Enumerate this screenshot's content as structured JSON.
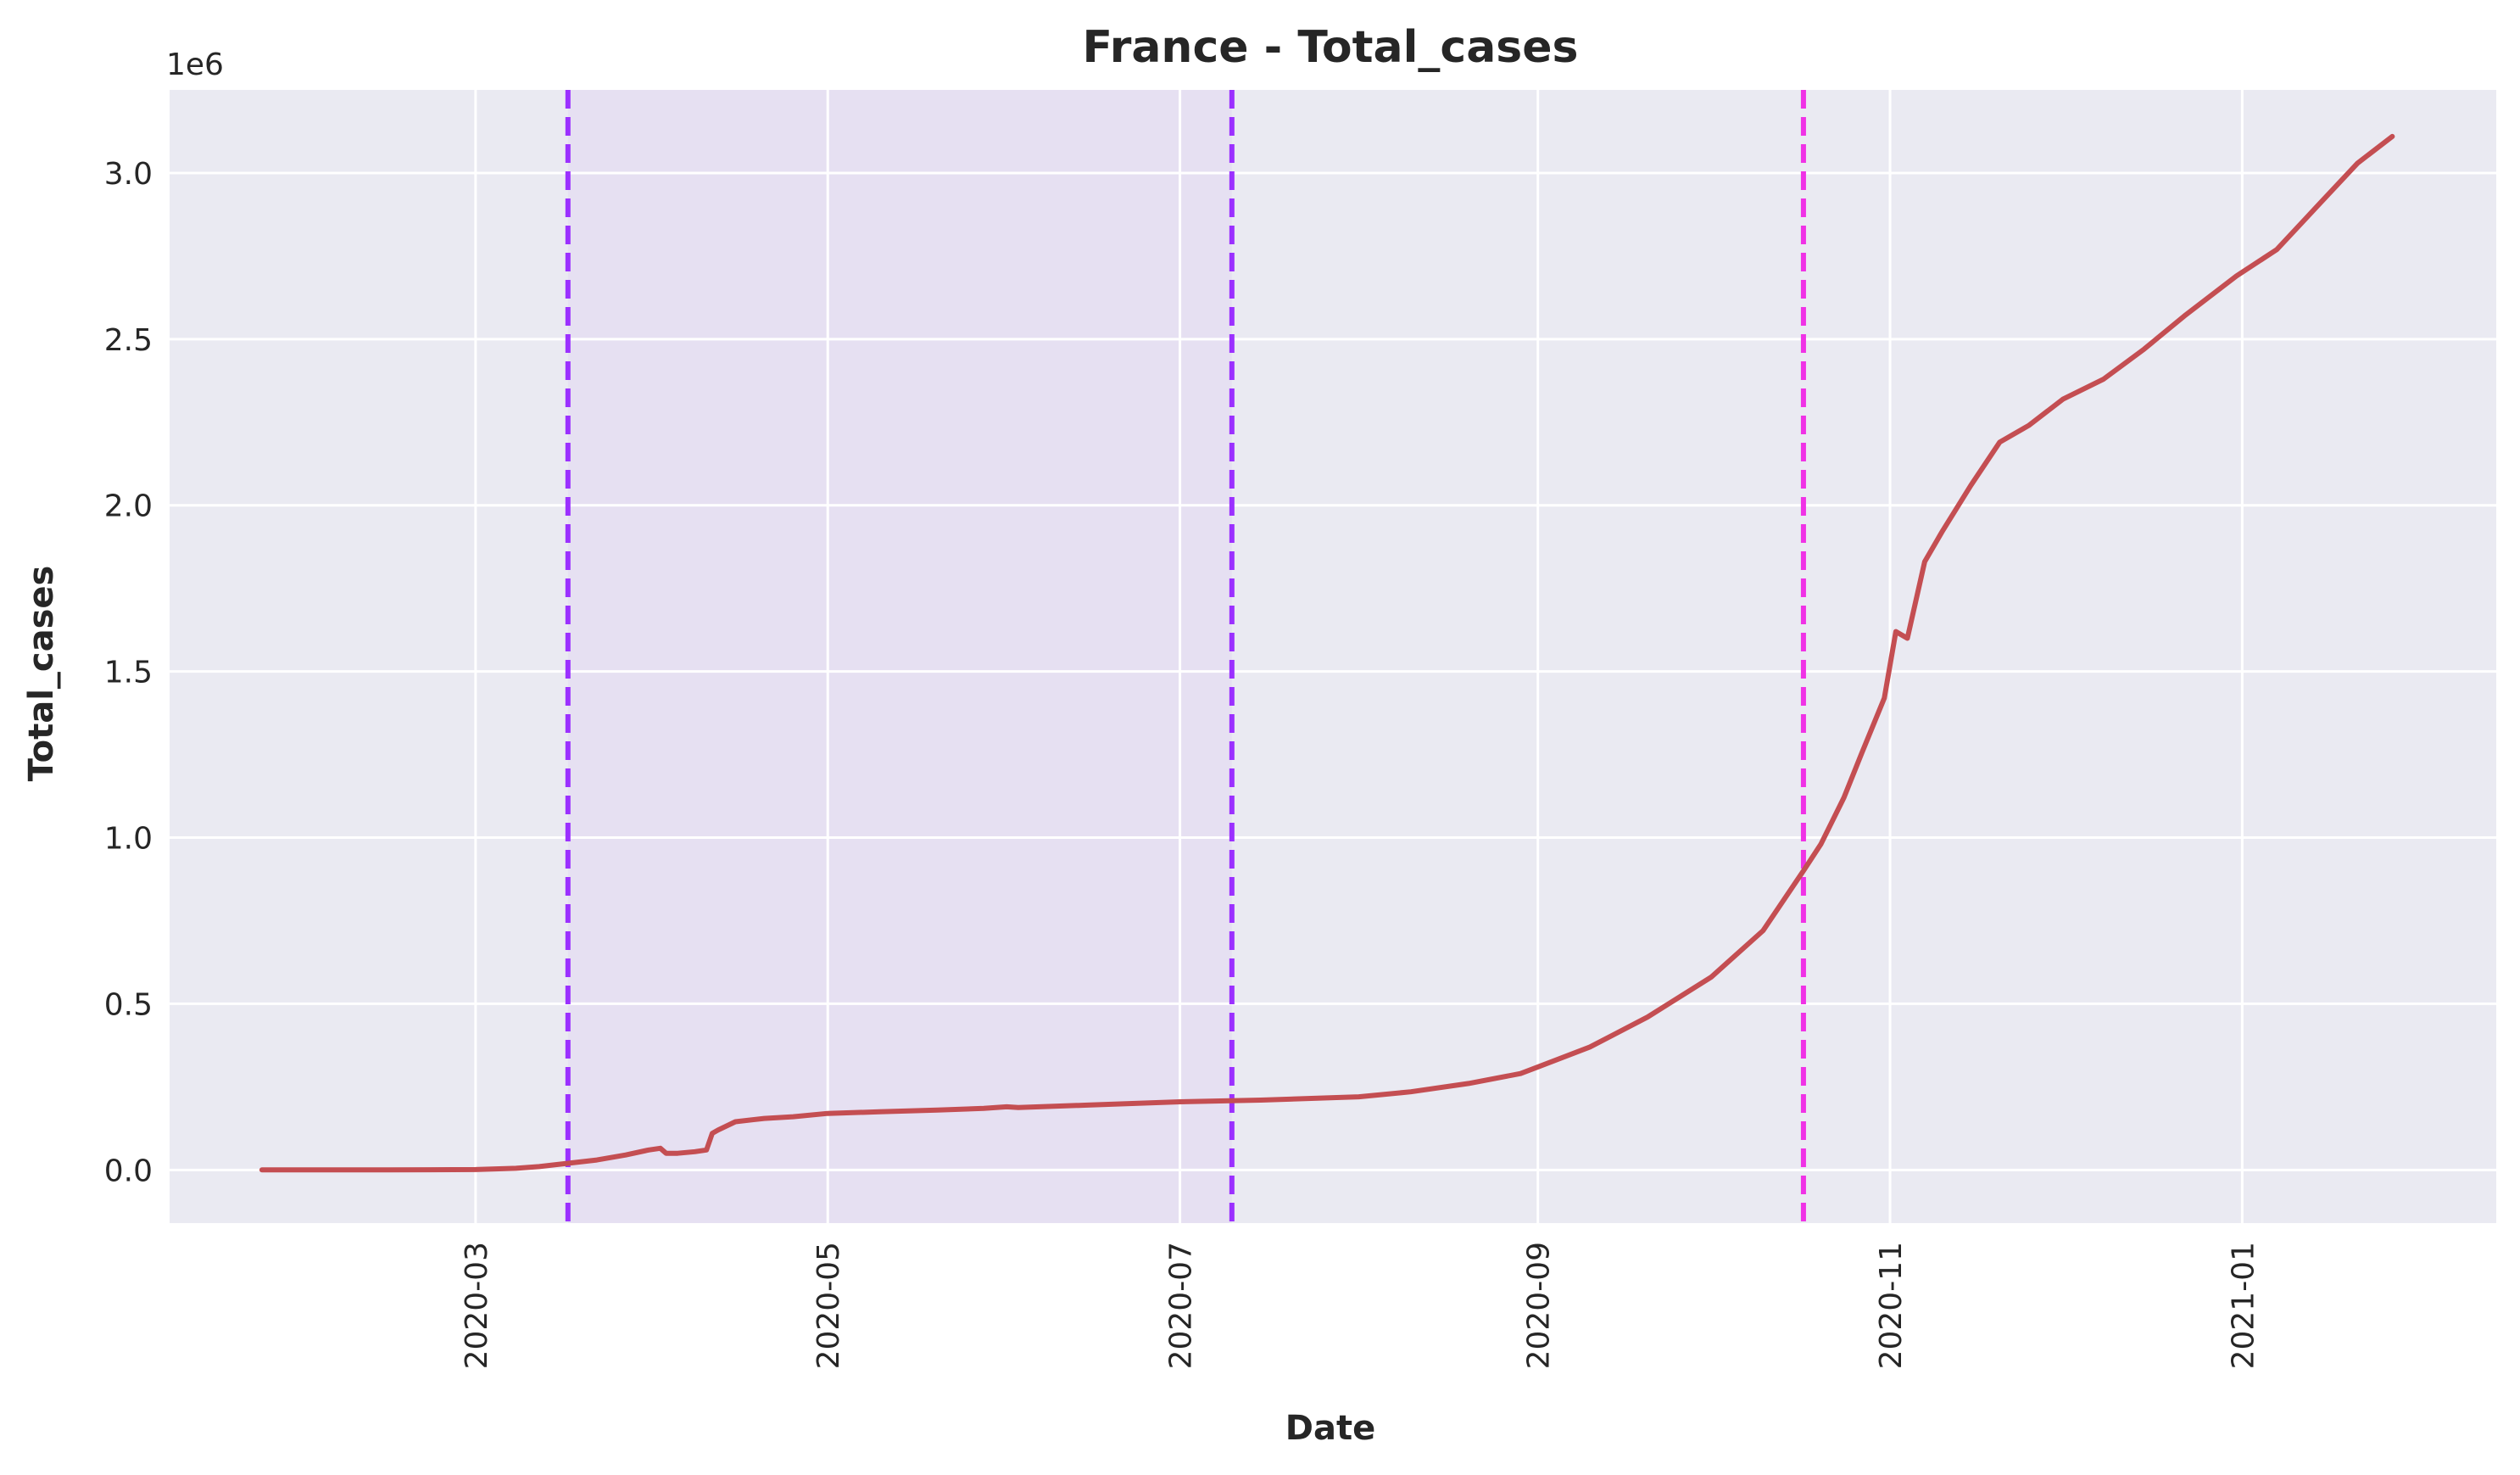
{
  "chart_data": {
    "type": "line",
    "title": "France - Total_cases",
    "xlabel": "Date",
    "ylabel": "Total_cases",
    "y_offset_label": "1e6",
    "grid": true,
    "legend": "none",
    "xlim": [
      "2020-01-08",
      "2021-02-14"
    ],
    "ylim": [
      -0.16,
      3.25
    ],
    "x_ticks": [
      "2020-03-01",
      "2020-05-01",
      "2020-07-01",
      "2020-09-01",
      "2020-11-01",
      "2021-01-01"
    ],
    "x_tick_labels": [
      "2020-03",
      "2020-05",
      "2020-07",
      "2020-09",
      "2020-11",
      "2021-01"
    ],
    "y_ticks": [
      0.0,
      0.5,
      1.0,
      1.5,
      2.0,
      2.5,
      3.0
    ],
    "y_tick_labels": [
      "0.0",
      "0.5",
      "1.0",
      "1.5",
      "2.0",
      "2.5",
      "3.0"
    ],
    "shaded_region": {
      "start": "2020-03-17",
      "end": "2020-07-10",
      "color": "#e6e0f2"
    },
    "vertical_lines": [
      {
        "x": "2020-03-17",
        "color": "#9b30ff",
        "style": "dashed"
      },
      {
        "x": "2020-07-10",
        "color": "#9b30ff",
        "style": "dashed"
      },
      {
        "x": "2020-10-17",
        "color": "#f032e6",
        "style": "dashed"
      }
    ],
    "series": [
      {
        "color": "#c44e52",
        "x": [
          "2020-01-24",
          "2020-02-15",
          "2020-03-01",
          "2020-03-08",
          "2020-03-12",
          "2020-03-17",
          "2020-03-22",
          "2020-03-27",
          "2020-03-31",
          "2020-04-02",
          "2020-04-03",
          "2020-04-05",
          "2020-04-08",
          "2020-04-10",
          "2020-04-11",
          "2020-04-12",
          "2020-04-15",
          "2020-04-20",
          "2020-04-25",
          "2020-05-01",
          "2020-05-10",
          "2020-05-20",
          "2020-05-28",
          "2020-06-01",
          "2020-06-03",
          "2020-06-15",
          "2020-07-01",
          "2020-07-15",
          "2020-08-01",
          "2020-08-10",
          "2020-08-20",
          "2020-08-29",
          "2020-09-01",
          "2020-09-10",
          "2020-09-20",
          "2020-10-01",
          "2020-10-10",
          "2020-10-17",
          "2020-10-20",
          "2020-10-24",
          "2020-10-27",
          "2020-10-31",
          "2020-11-02",
          "2020-11-04",
          "2020-11-07",
          "2020-11-10",
          "2020-11-15",
          "2020-11-20",
          "2020-11-25",
          "2020-12-01",
          "2020-12-08",
          "2020-12-15",
          "2020-12-22",
          "2020-12-31",
          "2021-01-07",
          "2021-01-14",
          "2021-01-21",
          "2021-01-27"
        ],
        "y": [
          0.0,
          0.0,
          0.001,
          0.005,
          0.01,
          0.02,
          0.03,
          0.045,
          0.06,
          0.065,
          0.05,
          0.05,
          0.055,
          0.06,
          0.11,
          0.12,
          0.145,
          0.155,
          0.16,
          0.17,
          0.175,
          0.18,
          0.185,
          0.19,
          0.188,
          0.195,
          0.205,
          0.21,
          0.22,
          0.235,
          0.26,
          0.29,
          0.31,
          0.37,
          0.46,
          0.58,
          0.72,
          0.9,
          0.98,
          1.12,
          1.25,
          1.42,
          1.62,
          1.6,
          1.83,
          1.92,
          2.06,
          2.19,
          2.24,
          2.32,
          2.38,
          2.47,
          2.57,
          2.69,
          2.77,
          2.9,
          3.03,
          3.11
        ]
      }
    ]
  }
}
